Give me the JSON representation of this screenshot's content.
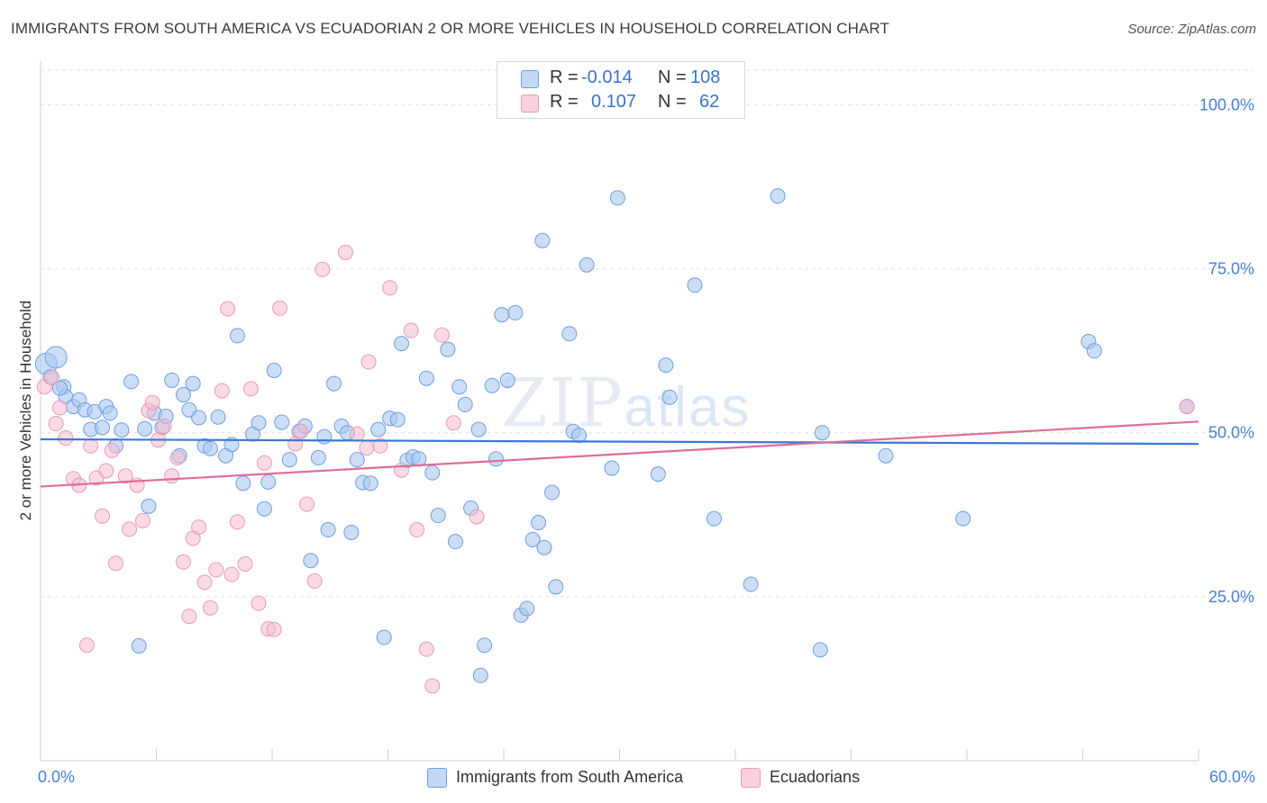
{
  "title": "IMMIGRANTS FROM SOUTH AMERICA VS ECUADORIAN 2 OR MORE VEHICLES IN HOUSEHOLD CORRELATION CHART",
  "source": "Source: ZipAtlas.com",
  "watermark": {
    "zip": "ZIP",
    "atlas": "atlas"
  },
  "colors": {
    "blue_fill": "#aac8f0",
    "blue_stroke": "#6e9ee0",
    "blue_line": "#3b78d8",
    "pink_fill": "#f6bcd0",
    "pink_stroke": "#e89ab6",
    "pink_line": "#e06c9a",
    "tick_text": "#4a7fd0"
  },
  "legend": {
    "rows": [
      {
        "r_label": "R =",
        "r_value": "-0.014",
        "n_label": "N =",
        "n_value": "108"
      },
      {
        "r_label": "R =",
        "r_value": "0.107",
        "n_label": "N =",
        "n_value": "62"
      }
    ]
  },
  "chart_data": {
    "type": "scatter",
    "title": "IMMIGRANTS FROM SOUTH AMERICA VS ECUADORIAN 2 OR MORE VEHICLES IN HOUSEHOLD CORRELATION CHART",
    "xlabel": "",
    "ylabel": "2 or more Vehicles in Household",
    "xlim": [
      0,
      60
    ],
    "ylim": [
      0,
      105
    ],
    "x_tick_labels": [
      "0.0%",
      "60.0%"
    ],
    "y_ticks": [
      25,
      50,
      75,
      100
    ],
    "y_tick_labels": [
      "25.0%",
      "50.0%",
      "75.0%",
      "100.0%"
    ],
    "grid": true,
    "legend_position": "bottom",
    "series": [
      {
        "name": "Immigrants from South America",
        "trend": {
          "x": [
            0,
            60
          ],
          "y": [
            49.0,
            48.3
          ]
        },
        "points": [
          [
            0.3,
            60.5
          ],
          [
            0.8,
            61.5
          ],
          [
            1.2,
            57.0
          ],
          [
            1.3,
            55.5
          ],
          [
            1.7,
            54.0
          ],
          [
            2.0,
            55.0
          ],
          [
            2.3,
            53.5
          ],
          [
            2.6,
            50.5
          ],
          [
            2.8,
            53.2
          ],
          [
            3.2,
            50.8
          ],
          [
            3.4,
            54.0
          ],
          [
            3.6,
            53.0
          ],
          [
            3.9,
            48.0
          ],
          [
            4.2,
            50.4
          ],
          [
            4.7,
            57.8
          ],
          [
            5.1,
            17.5
          ],
          [
            5.4,
            50.6
          ],
          [
            5.6,
            38.8
          ],
          [
            5.9,
            53.0
          ],
          [
            6.3,
            50.8
          ],
          [
            6.5,
            52.5
          ],
          [
            6.8,
            58.0
          ],
          [
            7.2,
            46.5
          ],
          [
            7.4,
            55.8
          ],
          [
            7.7,
            53.5
          ],
          [
            7.9,
            57.5
          ],
          [
            8.2,
            52.3
          ],
          [
            8.5,
            48.0
          ],
          [
            8.8,
            47.6
          ],
          [
            9.2,
            52.4
          ],
          [
            9.6,
            46.5
          ],
          [
            9.9,
            48.2
          ],
          [
            10.2,
            64.8
          ],
          [
            10.5,
            42.3
          ],
          [
            11.0,
            49.8
          ],
          [
            11.3,
            51.5
          ],
          [
            11.6,
            38.4
          ],
          [
            11.8,
            42.5
          ],
          [
            12.1,
            59.5
          ],
          [
            12.5,
            51.6
          ],
          [
            12.9,
            45.9
          ],
          [
            13.4,
            50.2
          ],
          [
            13.7,
            51.0
          ],
          [
            14.0,
            30.5
          ],
          [
            14.4,
            46.2
          ],
          [
            14.7,
            49.4
          ],
          [
            14.9,
            35.2
          ],
          [
            15.2,
            57.5
          ],
          [
            15.6,
            51.0
          ],
          [
            15.9,
            50.0
          ],
          [
            16.1,
            34.8
          ],
          [
            16.4,
            45.9
          ],
          [
            16.7,
            42.4
          ],
          [
            17.1,
            42.3
          ],
          [
            17.5,
            50.5
          ],
          [
            17.8,
            18.8
          ],
          [
            18.1,
            52.2
          ],
          [
            18.5,
            52.0
          ],
          [
            18.7,
            63.6
          ],
          [
            19.0,
            45.8
          ],
          [
            19.3,
            46.3
          ],
          [
            19.6,
            46.0
          ],
          [
            20.0,
            58.3
          ],
          [
            20.3,
            43.9
          ],
          [
            20.6,
            37.4
          ],
          [
            21.1,
            62.7
          ],
          [
            21.5,
            33.4
          ],
          [
            21.7,
            57.0
          ],
          [
            22.0,
            54.3
          ],
          [
            22.3,
            38.5
          ],
          [
            22.7,
            50.5
          ],
          [
            22.8,
            13.0
          ],
          [
            23.0,
            17.6
          ],
          [
            23.4,
            57.2
          ],
          [
            23.9,
            68.0
          ],
          [
            23.6,
            46.0
          ],
          [
            24.2,
            58.0
          ],
          [
            24.6,
            68.3
          ],
          [
            24.9,
            22.2
          ],
          [
            25.2,
            23.2
          ],
          [
            25.5,
            33.7
          ],
          [
            25.8,
            36.3
          ],
          [
            26.0,
            79.3
          ],
          [
            26.1,
            32.5
          ],
          [
            26.5,
            40.9
          ],
          [
            26.7,
            26.5
          ],
          [
            27.4,
            65.1
          ],
          [
            27.6,
            50.2
          ],
          [
            27.9,
            49.6
          ],
          [
            28.3,
            75.6
          ],
          [
            29.6,
            44.6
          ],
          [
            29.9,
            85.8
          ],
          [
            32.0,
            43.7
          ],
          [
            32.4,
            60.3
          ],
          [
            32.6,
            55.4
          ],
          [
            33.9,
            72.5
          ],
          [
            34.9,
            36.9
          ],
          [
            36.8,
            26.9
          ],
          [
            38.2,
            86.1
          ],
          [
            40.4,
            16.9
          ],
          [
            40.5,
            50.0
          ],
          [
            43.8,
            46.5
          ],
          [
            47.8,
            36.9
          ],
          [
            54.3,
            63.9
          ],
          [
            54.6,
            62.5
          ],
          [
            59.4,
            54.0
          ],
          [
            0.5,
            58.5
          ],
          [
            1.0,
            56.8
          ]
        ]
      },
      {
        "name": "Ecuadorians",
        "trend": {
          "x": [
            0,
            60
          ],
          "y": [
            41.8,
            51.7
          ]
        },
        "points": [
          [
            0.2,
            57.0
          ],
          [
            0.6,
            58.4
          ],
          [
            0.8,
            51.4
          ],
          [
            1.0,
            53.8
          ],
          [
            1.3,
            49.2
          ],
          [
            1.7,
            43.0
          ],
          [
            2.0,
            42.0
          ],
          [
            2.4,
            17.6
          ],
          [
            2.6,
            48.0
          ],
          [
            2.9,
            43.1
          ],
          [
            3.2,
            37.3
          ],
          [
            3.4,
            44.2
          ],
          [
            3.7,
            47.3
          ],
          [
            3.9,
            30.1
          ],
          [
            4.4,
            43.4
          ],
          [
            4.6,
            35.3
          ],
          [
            5.0,
            42.0
          ],
          [
            5.3,
            36.6
          ],
          [
            5.6,
            53.4
          ],
          [
            5.8,
            54.6
          ],
          [
            6.1,
            48.9
          ],
          [
            6.4,
            51.0
          ],
          [
            6.8,
            43.4
          ],
          [
            7.1,
            46.2
          ],
          [
            7.4,
            30.3
          ],
          [
            7.7,
            22.0
          ],
          [
            7.9,
            33.9
          ],
          [
            8.2,
            35.6
          ],
          [
            8.5,
            27.2
          ],
          [
            8.8,
            23.3
          ],
          [
            9.1,
            29.1
          ],
          [
            9.4,
            56.4
          ],
          [
            9.7,
            68.9
          ],
          [
            9.9,
            28.4
          ],
          [
            10.2,
            36.4
          ],
          [
            10.6,
            30.0
          ],
          [
            10.9,
            56.7
          ],
          [
            11.3,
            24.0
          ],
          [
            11.6,
            45.4
          ],
          [
            11.8,
            20.1
          ],
          [
            12.1,
            20.0
          ],
          [
            12.4,
            69.0
          ],
          [
            13.2,
            48.3
          ],
          [
            13.5,
            50.2
          ],
          [
            13.8,
            39.1
          ],
          [
            14.2,
            27.4
          ],
          [
            14.6,
            74.9
          ],
          [
            15.8,
            77.5
          ],
          [
            16.4,
            49.8
          ],
          [
            17.0,
            60.8
          ],
          [
            17.6,
            48.0
          ],
          [
            18.1,
            72.1
          ],
          [
            18.7,
            44.3
          ],
          [
            19.2,
            65.6
          ],
          [
            19.5,
            35.2
          ],
          [
            20.0,
            17.0
          ],
          [
            20.3,
            11.4
          ],
          [
            20.8,
            64.9
          ],
          [
            21.4,
            51.5
          ],
          [
            22.6,
            37.2
          ],
          [
            59.4,
            54.0
          ],
          [
            16.9,
            47.7
          ]
        ]
      }
    ]
  },
  "bottom_legend": [
    {
      "label": "Immigrants from South America"
    },
    {
      "label": "Ecuadorians"
    }
  ]
}
